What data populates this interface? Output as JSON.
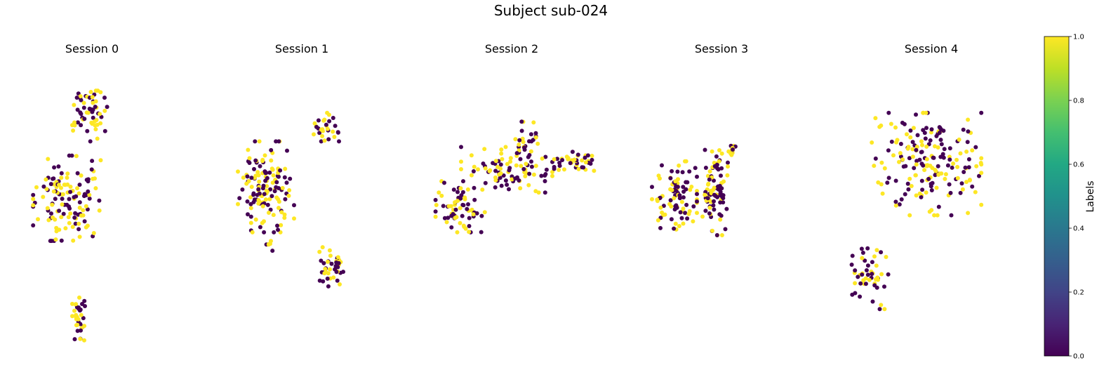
{
  "chart_data": {
    "type": "scatter",
    "title": "Subject sub-024",
    "colormap": "viridis",
    "axes_visible": false,
    "grid": false,
    "colorbar": {
      "label": "Labels",
      "range": [
        0.0,
        1.0
      ],
      "ticks": [
        "0.0",
        "0.2",
        "0.4",
        "0.6",
        "0.8",
        "1.0"
      ],
      "placement": "right"
    },
    "label_colors": {
      "0": "#440154",
      "1": "#fde725"
    },
    "panels": [
      {
        "title": "Session 0",
        "clusters": [
          {
            "cx": 0.49,
            "cy": 0.17,
            "rx": 0.14,
            "ry": 0.1,
            "n": 60
          },
          {
            "cx": 0.32,
            "cy": 0.47,
            "rx": 0.28,
            "ry": 0.15,
            "n": 130
          },
          {
            "cx": 0.4,
            "cy": 0.88,
            "rx": 0.05,
            "ry": 0.09,
            "n": 35
          }
        ]
      },
      {
        "title": "Session 1",
        "clusters": [
          {
            "cx": 0.22,
            "cy": 0.43,
            "rx": 0.2,
            "ry": 0.16,
            "n": 140
          },
          {
            "cx": 0.65,
            "cy": 0.22,
            "rx": 0.09,
            "ry": 0.05,
            "n": 30
          },
          {
            "cx": 0.68,
            "cy": 0.71,
            "rx": 0.09,
            "ry": 0.07,
            "n": 40
          },
          {
            "cx": 0.24,
            "cy": 0.63,
            "rx": 0.03,
            "ry": 0.03,
            "n": 6
          }
        ]
      },
      {
        "title": "Session 2",
        "clusters": [
          {
            "cx": 0.2,
            "cy": 0.5,
            "rx": 0.14,
            "ry": 0.09,
            "n": 70
          },
          {
            "cx": 0.45,
            "cy": 0.37,
            "rx": 0.25,
            "ry": 0.08,
            "n": 90
          },
          {
            "cx": 0.55,
            "cy": 0.28,
            "rx": 0.07,
            "ry": 0.09,
            "n": 25
          },
          {
            "cx": 0.83,
            "cy": 0.34,
            "rx": 0.12,
            "ry": 0.04,
            "n": 40
          }
        ]
      },
      {
        "title": "Session 3",
        "clusters": [
          {
            "cx": 0.23,
            "cy": 0.46,
            "rx": 0.16,
            "ry": 0.12,
            "n": 90
          },
          {
            "cx": 0.52,
            "cy": 0.45,
            "rx": 0.09,
            "ry": 0.15,
            "n": 90
          },
          {
            "cx": 0.64,
            "cy": 0.3,
            "rx": 0.03,
            "ry": 0.03,
            "n": 12
          }
        ]
      },
      {
        "title": "Session 4",
        "clusters": [
          {
            "cx": 0.52,
            "cy": 0.35,
            "rx": 0.3,
            "ry": 0.18,
            "n": 190
          },
          {
            "cx": 0.21,
            "cy": 0.74,
            "rx": 0.1,
            "ry": 0.12,
            "n": 50
          }
        ]
      }
    ]
  }
}
